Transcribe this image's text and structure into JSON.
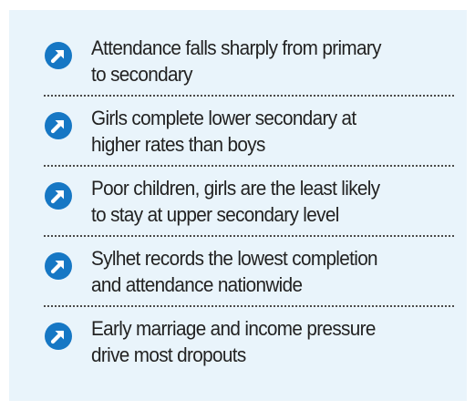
{
  "colors": {
    "panel_background": "#e9f4fb",
    "icon_fill": "#1677c4",
    "divider": "#4a4a4a",
    "text": "#222222"
  },
  "items": [
    {
      "icon": "arrow-up-right-icon",
      "line1": "Attendance falls sharply from primary",
      "line2": "to secondary"
    },
    {
      "icon": "arrow-up-right-icon",
      "line1": "Girls complete lower secondary at",
      "line2": "higher rates than boys"
    },
    {
      "icon": "arrow-up-right-icon",
      "line1": "Poor children, girls are the least likely",
      "line2": "to stay at upper secondary level"
    },
    {
      "icon": "arrow-up-right-icon",
      "line1": "Sylhet records the lowest completion",
      "line2": "and attendance nationwide"
    },
    {
      "icon": "arrow-up-right-icon",
      "line1": "Early marriage and income pressure",
      "line2": "drive most dropouts"
    }
  ]
}
